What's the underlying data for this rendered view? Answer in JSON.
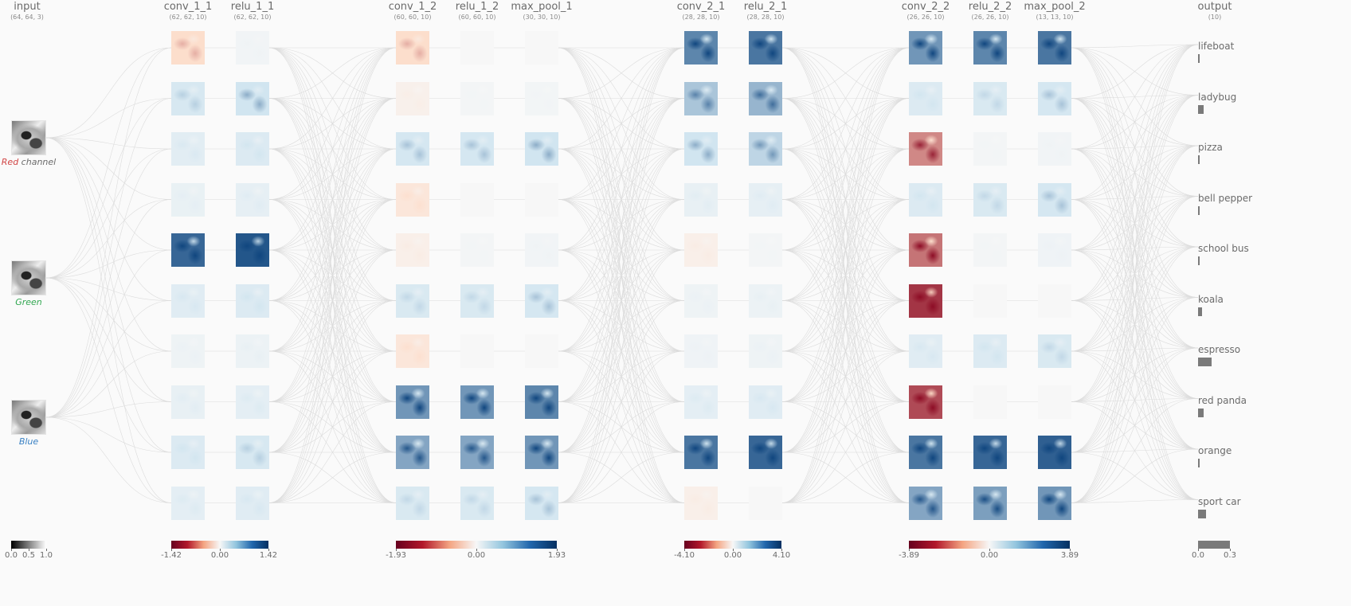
{
  "input": {
    "name": "input",
    "shape": "(64, 64, 3)",
    "channels": [
      {
        "label_italic": "Red",
        "label_rest": " channel",
        "color": "#d14545"
      },
      {
        "label_italic": "Green",
        "label_rest": "",
        "color": "#34a853"
      },
      {
        "label_italic": "Blue",
        "label_rest": "",
        "color": "#3b82c4"
      }
    ],
    "legend_ticks": [
      "0.0",
      "0.5",
      "1.0"
    ]
  },
  "layers": [
    {
      "name": "conv_1_1",
      "shape": "(62, 62, 10)",
      "group": 0,
      "maps": [
        -0.45,
        0.42,
        0.28,
        0.18,
        0.9,
        0.3,
        0.12,
        0.2,
        0.35,
        0.25
      ]
    },
    {
      "name": "relu_1_1",
      "shape": "(62, 62, 10)",
      "group": 0,
      "maps": [
        0.08,
        0.5,
        0.35,
        0.22,
        0.95,
        0.35,
        0.15,
        0.25,
        0.42,
        0.3
      ]
    },
    {
      "name": "conv_1_2",
      "shape": "(60, 60, 10)",
      "group": 1,
      "maps": [
        -0.45,
        -0.12,
        0.45,
        -0.3,
        -0.15,
        0.4,
        -0.3,
        0.75,
        0.7,
        0.4
      ]
    },
    {
      "name": "relu_1_2",
      "shape": "(60, 60, 10)",
      "group": 1,
      "maps": [
        0.0,
        0.05,
        0.45,
        0.0,
        0.05,
        0.4,
        0.0,
        0.75,
        0.7,
        0.4
      ]
    },
    {
      "name": "max_pool_1",
      "shape": "(30, 30, 10)",
      "group": 1,
      "maps": [
        0.0,
        0.06,
        0.5,
        0.0,
        0.08,
        0.45,
        0.0,
        0.8,
        0.75,
        0.45
      ]
    },
    {
      "name": "conv_2_1",
      "shape": "(28, 28, 10)",
      "group": 2,
      "maps": [
        0.8,
        0.6,
        0.5,
        0.2,
        -0.15,
        0.12,
        0.1,
        0.25,
        0.85,
        -0.15
      ]
    },
    {
      "name": "relu_2_1",
      "shape": "(28, 28, 10)",
      "group": 2,
      "maps": [
        0.85,
        0.65,
        0.55,
        0.22,
        0.05,
        0.15,
        0.12,
        0.3,
        0.9,
        0.0
      ]
    },
    {
      "name": "conv_2_2",
      "shape": "(26, 26, 10)",
      "group": 3,
      "maps": [
        0.75,
        0.35,
        -0.7,
        0.35,
        -0.75,
        -0.9,
        0.3,
        -0.85,
        0.85,
        0.7
      ]
    },
    {
      "name": "relu_2_2",
      "shape": "(26, 26, 10)",
      "group": 3,
      "maps": [
        0.8,
        0.4,
        0.05,
        0.4,
        0.05,
        0.0,
        0.35,
        0.0,
        0.9,
        0.72
      ]
    },
    {
      "name": "max_pool_2",
      "shape": "(13, 13, 10)",
      "group": 3,
      "maps": [
        0.85,
        0.45,
        0.08,
        0.45,
        0.1,
        0.0,
        0.4,
        0.0,
        0.92,
        0.75
      ]
    }
  ],
  "legends": [
    {
      "ticks": [
        "-1.42",
        "0.00",
        "1.42"
      ]
    },
    {
      "ticks": [
        "-1.93",
        "0.00",
        "1.93"
      ]
    },
    {
      "ticks": [
        "-4.10",
        "0.00",
        "4.10"
      ]
    },
    {
      "ticks": [
        "-3.89",
        "0.00",
        "3.89"
      ]
    }
  ],
  "output": {
    "name": "output",
    "shape": "(10)",
    "classes": [
      {
        "label": "lifeboat",
        "prob": 0.012
      },
      {
        "label": "ladybug",
        "prob": 0.055
      },
      {
        "label": "pizza",
        "prob": 0.004
      },
      {
        "label": "bell pepper",
        "prob": 0.012
      },
      {
        "label": "school bus",
        "prob": 0.002
      },
      {
        "label": "koala",
        "prob": 0.04
      },
      {
        "label": "espresso",
        "prob": 0.125
      },
      {
        "label": "red panda",
        "prob": 0.05
      },
      {
        "label": "orange",
        "prob": 0.012
      },
      {
        "label": "sport car",
        "prob": 0.075
      }
    ],
    "legend_ticks": [
      "0.0",
      "0.3"
    ]
  },
  "colors": {
    "negative_dark": "#67001f",
    "negative_light": "#fddbc7",
    "neutral": "#f7f7f7",
    "positive_light": "#d1e5f0",
    "positive_dark": "#053061",
    "edge": "#dcdcdc",
    "bar": "#7a7a7a"
  }
}
